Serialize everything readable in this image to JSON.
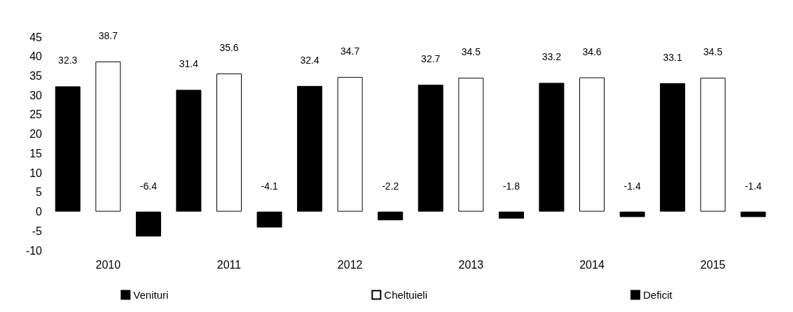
{
  "chart_data": {
    "type": "bar",
    "categories": [
      "2010",
      "2011",
      "2012",
      "2013",
      "2014",
      "2015"
    ],
    "series": [
      {
        "name": "Venituri",
        "color": "#000000",
        "values": [
          32.3,
          31.4,
          32.4,
          32.7,
          33.2,
          33.1
        ]
      },
      {
        "name": "Cheltuieli",
        "color": "#ffffff",
        "values": [
          38.7,
          35.6,
          34.7,
          34.5,
          34.6,
          34.5
        ]
      },
      {
        "name": "Deficit",
        "color": "#000000",
        "values": [
          -6.4,
          -4.1,
          -2.2,
          -1.8,
          -1.4,
          -1.4
        ]
      }
    ],
    "ylim": [
      -10,
      45
    ],
    "yticks": [
      -10,
      -5,
      0,
      5,
      10,
      15,
      20,
      25,
      30,
      35,
      40,
      45
    ],
    "data_labels": true,
    "grid": false,
    "legend": "bottom"
  }
}
